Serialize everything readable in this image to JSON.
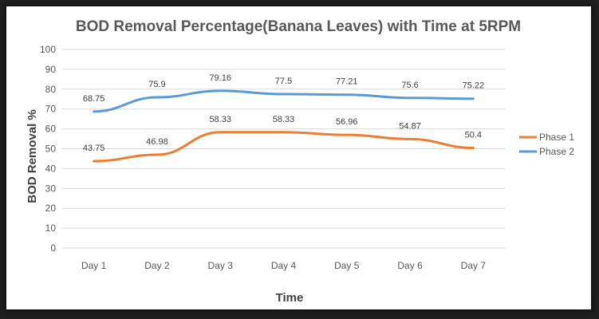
{
  "chart_data": {
    "type": "line",
    "title": "BOD Removal Percentage(Banana Leaves) with Time at 5RPM",
    "xlabel": "Time",
    "ylabel": "BOD Removal %",
    "categories": [
      "Day 1",
      "Day 2",
      "Day 3",
      "Day 4",
      "Day 5",
      "Day 6",
      "Day 7"
    ],
    "ylim": [
      0,
      100
    ],
    "yticks": [
      0,
      10,
      20,
      30,
      40,
      50,
      60,
      70,
      80,
      90,
      100
    ],
    "grid": true,
    "legend_position": "right",
    "series": [
      {
        "name": "Phase 1",
        "color": "#ed7d31",
        "values": [
          43.75,
          46.98,
          58.33,
          58.33,
          56.96,
          54.87,
          50.4
        ],
        "labels": [
          "43.75",
          "46.98",
          "58.33",
          "58.33",
          "56.96",
          "54.87",
          "50.4"
        ]
      },
      {
        "name": "Phase 2",
        "color": "#5b9bd5",
        "values": [
          68.75,
          75.9,
          79.16,
          77.5,
          77.21,
          75.6,
          75.22
        ],
        "labels": [
          "68.75",
          "75.9",
          "79.16",
          "77.5",
          "77.21",
          "75.6",
          "75.22"
        ]
      }
    ]
  }
}
